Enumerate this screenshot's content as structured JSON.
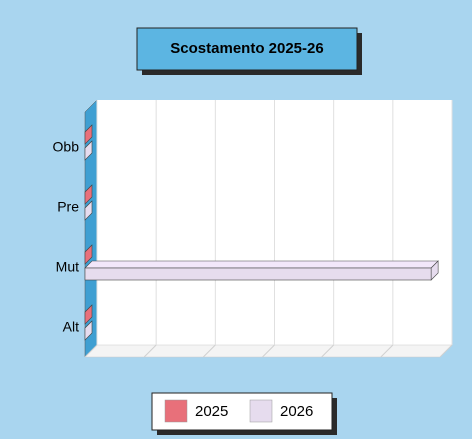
{
  "chart_data": {
    "type": "bar3d_horizontal",
    "title": "Scostamento 2025-26",
    "categories": [
      "Obb",
      "Pre",
      "Mut",
      "Alt"
    ],
    "series": [
      {
        "name": "2025",
        "color": "#e8707a",
        "values": [
          0,
          0,
          0,
          0
        ]
      },
      {
        "name": "2026",
        "color": "#e6dcee",
        "values": [
          0,
          0,
          5.85,
          0
        ]
      }
    ],
    "xlim": [
      0,
      6
    ],
    "xticks": [
      0,
      1,
      2,
      3,
      4,
      5,
      6
    ],
    "grid": true,
    "legend": "bottom"
  }
}
